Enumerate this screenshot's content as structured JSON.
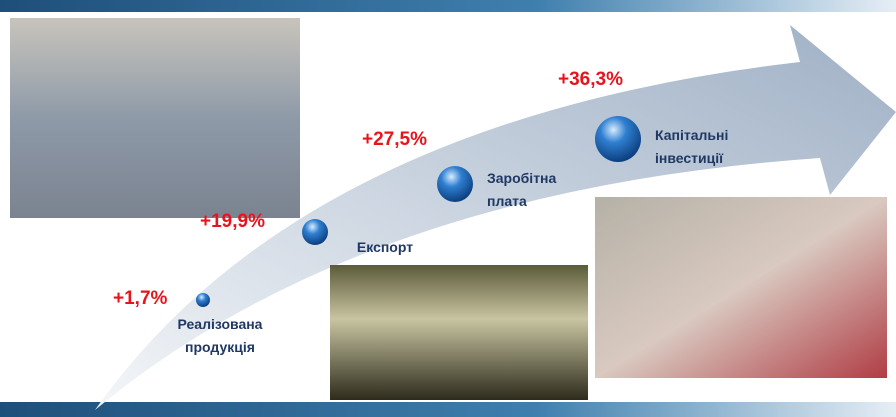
{
  "steps": [
    {
      "value": "+1,7%",
      "label": [
        "Реалізована",
        "продукція"
      ]
    },
    {
      "value": "+19,9%",
      "label": [
        "Експорт"
      ]
    },
    {
      "value": "+27,5%",
      "label": [
        "Заробітна",
        "плата"
      ]
    },
    {
      "value": "+36,3%",
      "label": [
        "Капітальні",
        "інвестиції"
      ]
    }
  ]
}
